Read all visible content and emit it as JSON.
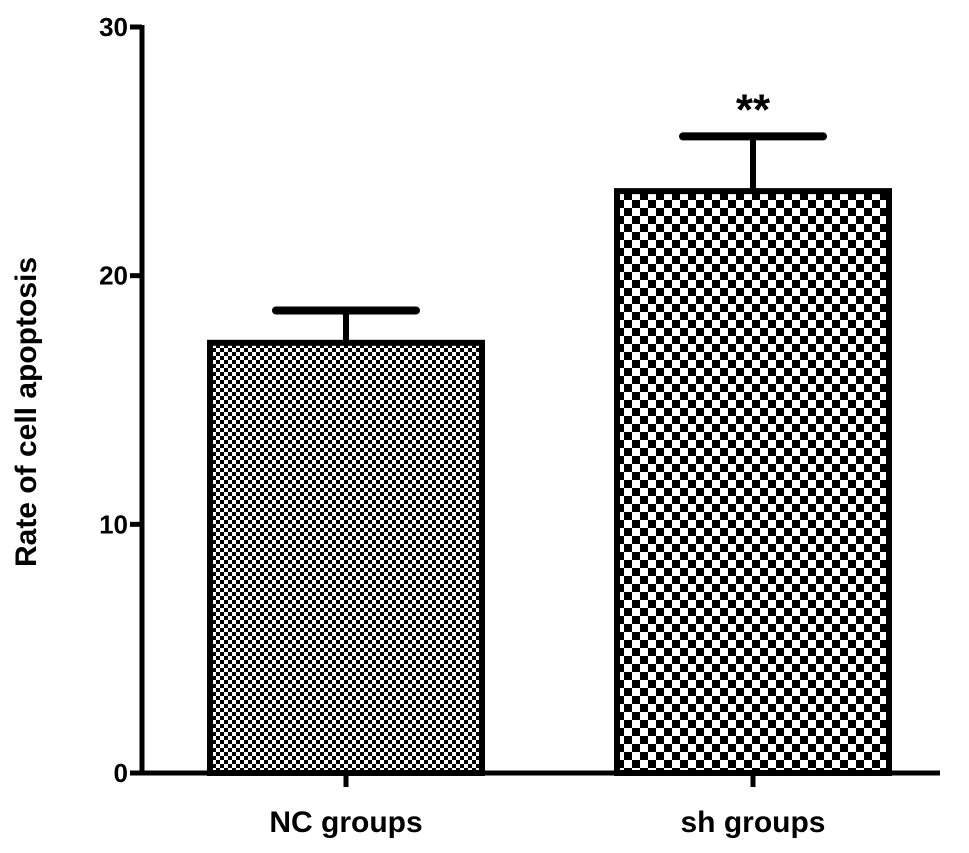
{
  "chart_data": {
    "type": "bar",
    "categories": [
      "NC groups",
      "sh groups"
    ],
    "values": [
      17.3,
      23.4
    ],
    "errors": [
      1.3,
      2.2
    ],
    "annotations": [
      "",
      "**"
    ],
    "ylabel": "Rate of cell apoptosis",
    "xlabel": "",
    "ylim": [
      0,
      30
    ],
    "yticks": [
      0,
      10,
      20,
      30
    ],
    "grid": false,
    "legend": "none",
    "bar_patterns": [
      "fine-checker",
      "coarse-checker"
    ],
    "colors": {
      "ink": "#000000",
      "background": "#ffffff"
    }
  }
}
